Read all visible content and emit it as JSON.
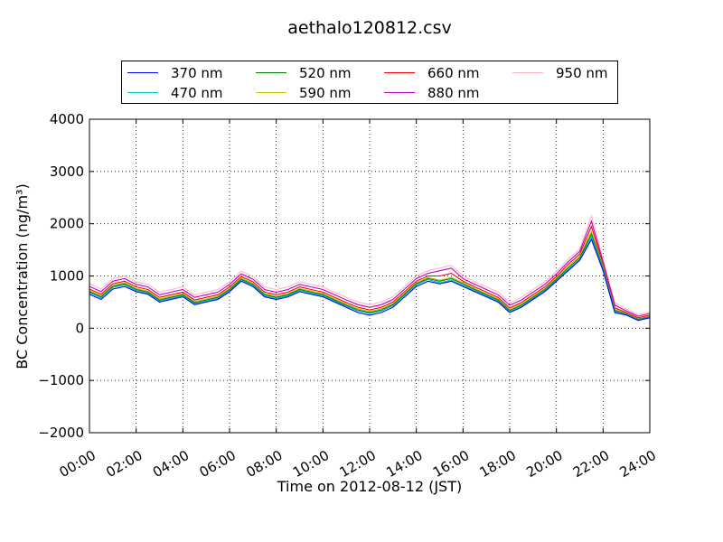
{
  "chart_data": {
    "type": "line",
    "title": "aethalo120812.csv",
    "xlabel": "Time on 2012-08-12 (JST)",
    "ylabel": "BC Concentration (ng/m³)",
    "xlim": [
      "00:00",
      "24:00"
    ],
    "ylim": [
      -2000,
      4000
    ],
    "x_ticks": [
      "00:00",
      "02:00",
      "04:00",
      "06:00",
      "08:00",
      "10:00",
      "12:00",
      "14:00",
      "16:00",
      "18:00",
      "20:00",
      "22:00",
      "24:00"
    ],
    "y_ticks": [
      "−2000",
      "−1000",
      "0",
      "1000",
      "2000",
      "3000",
      "4000"
    ],
    "grid": true,
    "legend_position": "top",
    "x_hours": [
      0,
      0.5,
      1,
      1.5,
      2,
      2.5,
      3,
      3.5,
      4,
      4.5,
      5,
      5.5,
      6,
      6.5,
      7,
      7.5,
      8,
      8.5,
      9,
      9.5,
      10,
      10.5,
      11,
      11.5,
      12,
      12.5,
      13,
      13.5,
      14,
      14.5,
      15,
      15.5,
      16,
      16.5,
      17,
      17.5,
      18,
      18.5,
      19,
      19.5,
      20,
      20.5,
      21,
      21.5,
      22,
      22.5,
      23,
      23.5,
      24
    ],
    "series": [
      {
        "name": "370 nm",
        "color": "#0000ff",
        "values": [
          650,
          550,
          750,
          800,
          700,
          650,
          500,
          550,
          600,
          450,
          500,
          550,
          700,
          900,
          800,
          600,
          550,
          600,
          700,
          650,
          600,
          500,
          400,
          300,
          250,
          300,
          400,
          600,
          800,
          900,
          850,
          900,
          800,
          700,
          600,
          500,
          300,
          400,
          550,
          700,
          900,
          1100,
          1300,
          1700,
          1100,
          300,
          250,
          150,
          200
        ]
      },
      {
        "name": "470 nm",
        "color": "#00bfbf",
        "values": [
          680,
          580,
          780,
          830,
          720,
          670,
          520,
          570,
          620,
          470,
          520,
          570,
          720,
          920,
          820,
          620,
          570,
          620,
          720,
          670,
          620,
          520,
          420,
          330,
          280,
          330,
          430,
          630,
          830,
          930,
          870,
          920,
          820,
          720,
          620,
          520,
          320,
          420,
          570,
          720,
          920,
          1120,
          1320,
          1750,
          1130,
          320,
          260,
          160,
          210
        ]
      },
      {
        "name": "520 nm",
        "color": "#008000",
        "values": [
          700,
          600,
          800,
          850,
          740,
          690,
          540,
          590,
          640,
          490,
          540,
          590,
          740,
          940,
          840,
          640,
          590,
          640,
          740,
          690,
          640,
          540,
          440,
          350,
          300,
          350,
          450,
          650,
          850,
          950,
          900,
          950,
          850,
          740,
          640,
          540,
          340,
          440,
          590,
          740,
          940,
          1150,
          1350,
          1800,
          1150,
          340,
          270,
          170,
          220
        ]
      },
      {
        "name": "590 nm",
        "color": "#bfbf00",
        "values": [
          720,
          620,
          820,
          870,
          760,
          710,
          560,
          610,
          660,
          510,
          560,
          610,
          760,
          960,
          860,
          660,
          610,
          660,
          760,
          710,
          660,
          560,
          460,
          370,
          320,
          370,
          470,
          670,
          870,
          970,
          920,
          970,
          870,
          760,
          660,
          560,
          360,
          460,
          610,
          760,
          960,
          1180,
          1380,
          1850,
          1180,
          360,
          280,
          180,
          230
        ]
      },
      {
        "name": "660 nm",
        "color": "#ff0000",
        "values": [
          750,
          650,
          850,
          900,
          790,
          740,
          590,
          640,
          690,
          540,
          590,
          640,
          790,
          990,
          890,
          690,
          640,
          690,
          790,
          740,
          690,
          590,
          490,
          400,
          350,
          400,
          500,
          700,
          900,
          1000,
          1000,
          1050,
          900,
          790,
          690,
          590,
          390,
          490,
          640,
          790,
          990,
          1220,
          1420,
          1950,
          1220,
          390,
          300,
          200,
          250
        ]
      },
      {
        "name": "880 nm",
        "color": "#bf00bf",
        "values": [
          800,
          700,
          900,
          950,
          840,
          790,
          640,
          690,
          740,
          590,
          640,
          690,
          840,
          1040,
          940,
          740,
          690,
          740,
          840,
          790,
          740,
          640,
          540,
          450,
          400,
          450,
          550,
          750,
          950,
          1050,
          1100,
          1150,
          950,
          840,
          740,
          640,
          440,
          540,
          690,
          840,
          1040,
          1270,
          1470,
          2050,
          1270,
          440,
          330,
          230,
          280
        ]
      },
      {
        "name": "950 nm",
        "color": "#ffb6c1",
        "values": [
          850,
          750,
          950,
          1000,
          890,
          840,
          690,
          740,
          790,
          640,
          690,
          740,
          890,
          1090,
          990,
          790,
          740,
          790,
          890,
          840,
          790,
          690,
          590,
          500,
          450,
          500,
          600,
          800,
          1000,
          1100,
          1150,
          1200,
          1000,
          890,
          790,
          690,
          490,
          590,
          740,
          890,
          1090,
          1320,
          1520,
          2150,
          1320,
          490,
          360,
          260,
          310
        ]
      }
    ]
  }
}
